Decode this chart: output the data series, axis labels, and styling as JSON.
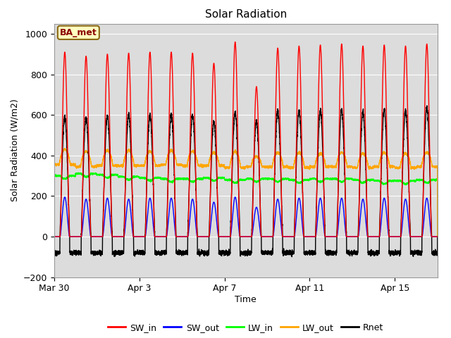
{
  "title": "Solar Radiation",
  "xlabel": "Time",
  "ylabel": "Solar Radiation (W/m2)",
  "ylim": [
    -200,
    1050
  ],
  "yticks": [
    -200,
    0,
    200,
    400,
    600,
    800,
    1000
  ],
  "annotation_text": "BA_met",
  "annotation_color": "#8B0000",
  "annotation_bg": "#FFFFC0",
  "x_tick_labels": [
    "Mar 30",
    "Apr 3",
    "Apr 7",
    "Apr 11",
    "Apr 15"
  ],
  "x_tick_pos": [
    0,
    4,
    8,
    12,
    16
  ],
  "series": {
    "SW_in": {
      "color": "red",
      "linewidth": 1.0
    },
    "SW_out": {
      "color": "blue",
      "linewidth": 1.0
    },
    "LW_in": {
      "color": "#00FF00",
      "linewidth": 1.0
    },
    "LW_out": {
      "color": "orange",
      "linewidth": 1.0
    },
    "Rnet": {
      "color": "black",
      "linewidth": 1.0
    }
  },
  "bg_color": "#DCDCDC",
  "fig_bg": "#FFFFFF",
  "num_days": 18,
  "points_per_day": 288
}
